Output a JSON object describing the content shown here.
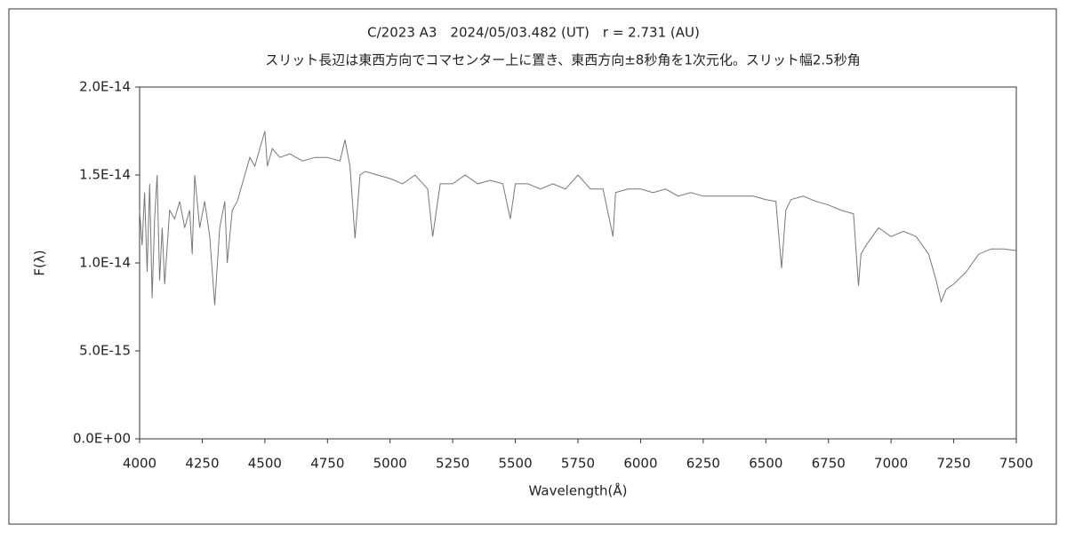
{
  "chart_data": {
    "type": "line",
    "title": "C/2023 A3　2024/05/03.482 (UT)　r = 2.731 (AU)",
    "subtitle": "スリット長辺は東西方向でコマセンター上に置き、東西方向±8秒角を1次元化。スリット幅2.5秒角",
    "x_label": "Wavelength(Å)",
    "y_label": "F(λ)",
    "xlim": [
      4000,
      7500
    ],
    "xticks": [
      4000,
      4250,
      4500,
      4750,
      5000,
      5250,
      5500,
      5750,
      6000,
      6250,
      6500,
      6750,
      7000,
      7250,
      7500
    ],
    "ylim": [
      0,
      2e-14
    ],
    "yticks": [
      {
        "value": 0,
        "label": "0.0E+00"
      },
      {
        "value": 5e-15,
        "label": "5.0E-15"
      },
      {
        "value": 1e-14,
        "label": "1.0E-14"
      },
      {
        "value": 1.5e-14,
        "label": "1.5E-14"
      },
      {
        "value": 2e-14,
        "label": "2.0E-14"
      }
    ],
    "grid": false,
    "color": "#777777",
    "x": [
      4000,
      4010,
      4020,
      4030,
      4040,
      4050,
      4060,
      4070,
      4080,
      4090,
      4100,
      4120,
      4140,
      4160,
      4180,
      4200,
      4210,
      4220,
      4240,
      4260,
      4280,
      4300,
      4320,
      4340,
      4350,
      4370,
      4390,
      4400,
      4420,
      4440,
      4460,
      4480,
      4500,
      4510,
      4530,
      4560,
      4600,
      4650,
      4700,
      4750,
      4800,
      4820,
      4840,
      4860,
      4880,
      4900,
      4950,
      5000,
      5050,
      5100,
      5150,
      5170,
      5200,
      5250,
      5300,
      5350,
      5400,
      5450,
      5480,
      5500,
      5550,
      5600,
      5650,
      5700,
      5750,
      5800,
      5850,
      5890,
      5900,
      5950,
      6000,
      6050,
      6100,
      6150,
      6200,
      6250,
      6300,
      6350,
      6400,
      6450,
      6500,
      6540,
      6563,
      6580,
      6600,
      6650,
      6700,
      6750,
      6800,
      6850,
      6870,
      6880,
      6900,
      6950,
      7000,
      7050,
      7100,
      7150,
      7180,
      7200,
      7220,
      7250,
      7300,
      7350,
      7400,
      7450,
      7500
    ],
    "values": [
      1.3e-14,
      1.1e-14,
      1.4e-14,
      9.5e-15,
      1.45e-14,
      8e-15,
      1.25e-14,
      1.5e-14,
      9e-15,
      1.2e-14,
      8.8e-15,
      1.3e-14,
      1.25e-14,
      1.35e-14,
      1.2e-14,
      1.3e-14,
      1.05e-14,
      1.5e-14,
      1.2e-14,
      1.35e-14,
      1.15e-14,
      7.6e-15,
      1.2e-14,
      1.35e-14,
      1e-14,
      1.3e-14,
      1.35e-14,
      1.4e-14,
      1.5e-14,
      1.6e-14,
      1.55e-14,
      1.65e-14,
      1.75e-14,
      1.55e-14,
      1.65e-14,
      1.6e-14,
      1.62e-14,
      1.58e-14,
      1.6e-14,
      1.6e-14,
      1.58e-14,
      1.7e-14,
      1.55e-14,
      1.14e-14,
      1.5e-14,
      1.52e-14,
      1.5e-14,
      1.48e-14,
      1.45e-14,
      1.5e-14,
      1.42e-14,
      1.15e-14,
      1.45e-14,
      1.45e-14,
      1.5e-14,
      1.45e-14,
      1.47e-14,
      1.45e-14,
      1.25e-14,
      1.45e-14,
      1.45e-14,
      1.42e-14,
      1.45e-14,
      1.42e-14,
      1.5e-14,
      1.42e-14,
      1.42e-14,
      1.15e-14,
      1.4e-14,
      1.42e-14,
      1.42e-14,
      1.4e-14,
      1.42e-14,
      1.38e-14,
      1.4e-14,
      1.38e-14,
      1.38e-14,
      1.38e-14,
      1.38e-14,
      1.38e-14,
      1.36e-14,
      1.35e-14,
      9.7e-15,
      1.3e-14,
      1.36e-14,
      1.38e-14,
      1.35e-14,
      1.33e-14,
      1.3e-14,
      1.28e-14,
      8.7e-15,
      1.05e-14,
      1.1e-14,
      1.2e-14,
      1.15e-14,
      1.18e-14,
      1.15e-14,
      1.05e-14,
      9e-15,
      7.8e-15,
      8.5e-15,
      8.8e-15,
      9.5e-15,
      1.05e-14,
      1.08e-14,
      1.08e-14,
      1.07e-14
    ]
  }
}
